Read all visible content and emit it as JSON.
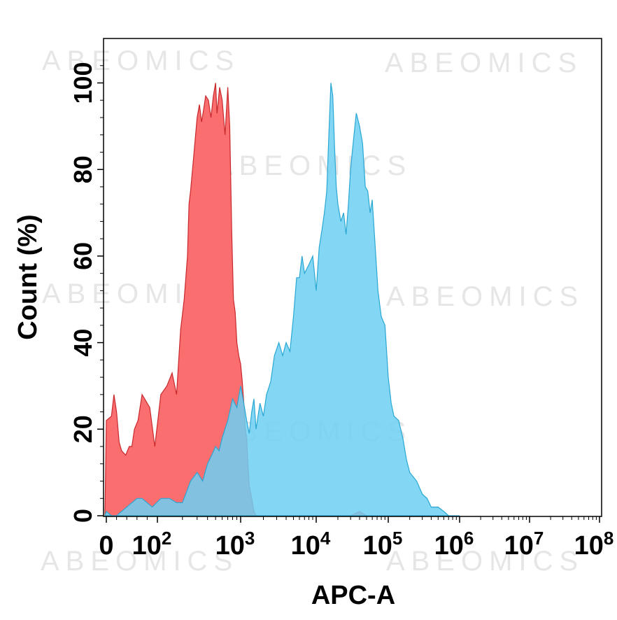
{
  "chart_data": {
    "type": "area",
    "xlabel": "APC-A",
    "ylabel": "Count  (%)",
    "xscale": "biexponential",
    "xlim": [
      -10,
      100000000
    ],
    "ylim": [
      0,
      107
    ],
    "x_ticks": [
      {
        "value": 0,
        "label": "0",
        "exp": ""
      },
      {
        "value": 100,
        "label": "10",
        "exp": "2"
      },
      {
        "value": 1000,
        "label": "10",
        "exp": "3"
      },
      {
        "value": 10000,
        "label": "10",
        "exp": "4"
      },
      {
        "value": 100000,
        "label": "10",
        "exp": "5"
      },
      {
        "value": 1000000,
        "label": "10",
        "exp": "6"
      },
      {
        "value": 10000000,
        "label": "10",
        "exp": "7"
      },
      {
        "value": 100000000,
        "label": "10",
        "exp": "8"
      }
    ],
    "y_ticks": [
      0,
      20,
      40,
      60,
      80,
      100
    ],
    "watermark": "ABEOMICS",
    "series": [
      {
        "fill": "#fa6e70",
        "stroke": "#c8282c",
        "x": [
          -10,
          0,
          10,
          15,
          20,
          25,
          30,
          38,
          45,
          50,
          55,
          62,
          70,
          75,
          85,
          95,
          110,
          130,
          150,
          170,
          190,
          210,
          230,
          240,
          250,
          270,
          300,
          320,
          340,
          360,
          380,
          410,
          440,
          470,
          500,
          520,
          560,
          600,
          650,
          700,
          740,
          780,
          820,
          860,
          900,
          950,
          1000,
          1050,
          1100,
          1150,
          1200,
          1250,
          1300,
          1400,
          1500,
          1600,
          1700,
          1800,
          2000,
          2200,
          2300,
          5000,
          8000,
          30000,
          40000,
          50000
        ],
        "values": [
          0,
          22,
          23,
          28,
          24,
          17,
          15,
          14,
          16,
          16,
          20,
          22,
          28,
          27,
          25,
          16,
          28,
          30,
          33,
          28,
          43,
          50,
          60,
          72,
          75,
          82,
          92,
          95,
          91,
          94,
          97,
          96,
          92,
          97,
          100,
          93,
          99,
          96,
          88,
          99,
          90,
          66,
          50,
          47,
          40,
          37,
          35,
          31,
          26,
          20,
          18,
          12,
          7,
          4,
          1,
          0,
          0,
          0,
          0,
          0,
          0,
          0,
          0,
          0,
          1,
          0
        ]
      },
      {
        "fill": "#6dd0f3",
        "stroke": "#2aa7d3",
        "x": [
          -10,
          0,
          10,
          20,
          30,
          40,
          50,
          60,
          70,
          80,
          90,
          110,
          140,
          170,
          200,
          250,
          300,
          350,
          400,
          450,
          500,
          550,
          600,
          700,
          800,
          900,
          1000,
          1100,
          1200,
          1300,
          1400,
          1500,
          1600,
          1800,
          2000,
          2200,
          2500,
          2800,
          3200,
          3600,
          4000,
          4500,
          5000,
          5500,
          6000,
          6500,
          7000,
          8000,
          9000,
          10000,
          11000,
          12000,
          13000,
          14000,
          15000,
          16000,
          17000,
          18000,
          19000,
          20000,
          22000,
          24000,
          26000,
          28000,
          30000,
          33000,
          36000,
          40000,
          44000,
          48000,
          52000,
          56000,
          60000,
          66000,
          72000,
          80000,
          90000,
          100000,
          110000,
          120000,
          140000,
          160000,
          180000,
          200000,
          250000,
          300000,
          350000,
          400000,
          500000,
          600000,
          700000,
          800000,
          1000000
        ],
        "values": [
          0,
          1,
          0,
          0,
          1,
          2,
          3,
          4,
          4,
          3,
          2,
          4,
          4,
          3,
          3,
          8,
          10,
          8,
          12,
          14,
          16,
          15,
          18,
          22,
          27,
          25,
          30,
          26,
          22,
          19,
          24,
          27,
          20,
          26,
          23,
          28,
          31,
          37,
          40,
          37,
          40,
          38,
          46,
          55,
          55,
          60,
          56,
          58,
          60,
          52,
          62,
          66,
          70,
          75,
          88,
          100,
          97,
          85,
          76,
          72,
          68,
          70,
          65,
          72,
          80,
          87,
          93,
          90,
          86,
          76,
          75,
          70,
          73,
          62,
          52,
          46,
          44,
          32,
          26,
          23,
          22,
          18,
          13,
          10,
          8,
          5,
          4,
          2,
          2,
          1,
          0,
          0,
          0
        ]
      }
    ]
  }
}
